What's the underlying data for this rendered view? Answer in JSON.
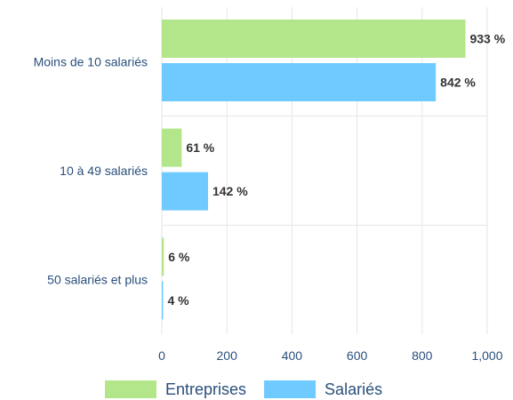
{
  "chart_data": {
    "type": "bar",
    "orientation": "horizontal",
    "categories": [
      "Moins de 10 salariés",
      "10 à 49 salariés",
      "50 salariés et plus"
    ],
    "series": [
      {
        "name": "Entreprises",
        "color": "#b3e58a",
        "values": [
          933,
          61,
          6
        ],
        "labels": [
          "933 %",
          "61 %",
          "6 %"
        ]
      },
      {
        "name": "Salariés",
        "color": "#6fcbff",
        "values": [
          842,
          142,
          4
        ],
        "labels": [
          "842 %",
          "142 %",
          "4 %"
        ]
      }
    ],
    "xlim": [
      0,
      1000
    ],
    "xticks": [
      0,
      200,
      400,
      600,
      800,
      1000
    ],
    "xtick_labels": [
      "0",
      "200",
      "400",
      "600",
      "800",
      "1,000"
    ],
    "grid": true,
    "legend_position": "bottom"
  }
}
